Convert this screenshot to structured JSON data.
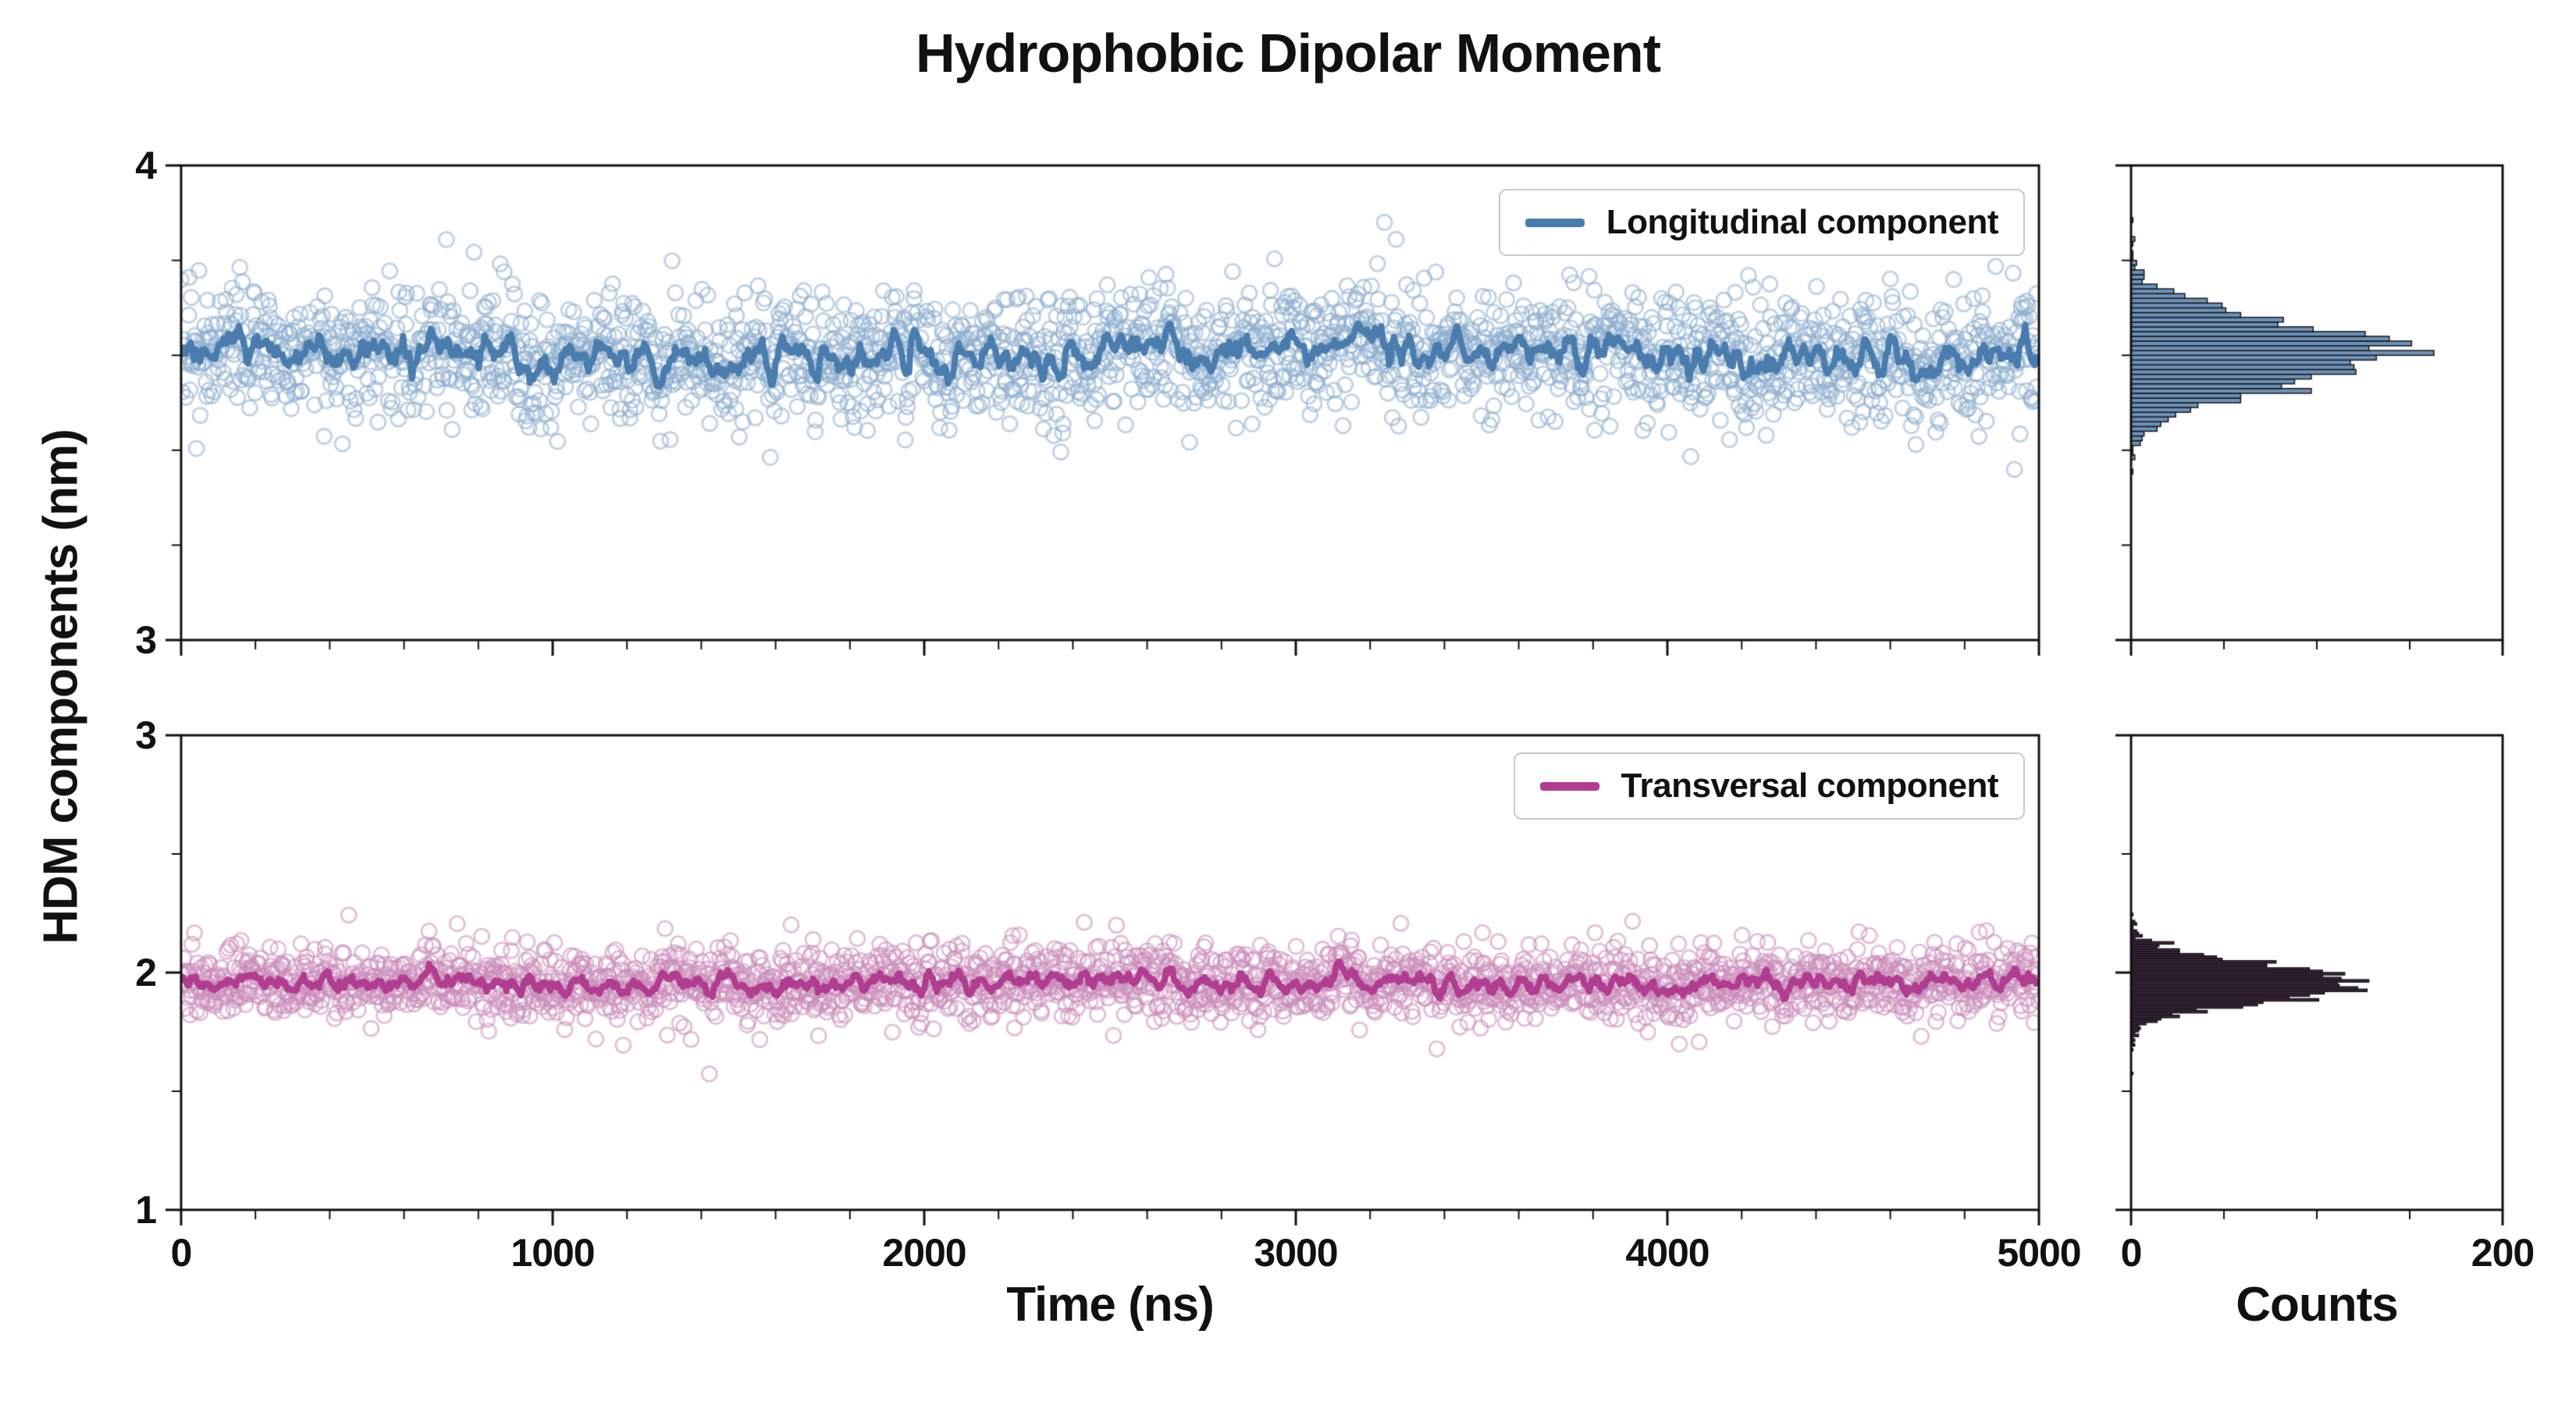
{
  "chart_data": {
    "type": "scatter",
    "title": "Hydrophobic Dipolar Moment",
    "xlabel": "Time (ns)",
    "ylabel": "HDM components (nm)",
    "hist_xlabel": "Counts",
    "x_range": [
      0,
      5000
    ],
    "xticks": [
      "0",
      "1000",
      "2000",
      "3000",
      "4000",
      "5000"
    ],
    "x_minor_step": 200,
    "hist_xlim": [
      0,
      200
    ],
    "hist_xticks": [
      "0",
      "200"
    ],
    "hist_x_minor": [
      50,
      100,
      150
    ],
    "legend_position": "upper right inside each panel",
    "grid": false,
    "panels": [
      {
        "legend": "Longitudinal component",
        "ylim": [
          3,
          4
        ],
        "yticks": [
          "3",
          "4"
        ],
        "y_minor_step": 0.2,
        "mean": 3.6,
        "std": 0.065,
        "n_points": 2400,
        "hist_bin_width": 0.01,
        "hist_peak_counts": 150,
        "scatter_color": "#8dadcd",
        "line_color": "#4a7dae",
        "hist_fill": "#6c92b6",
        "hist_edge": "#16161d",
        "seed": 7
      },
      {
        "legend": "Transversal component",
        "ylim": [
          1,
          3
        ],
        "yticks": [
          "1",
          "2",
          "3"
        ],
        "y_minor_step": 0.5,
        "mean": 1.96,
        "std": 0.075,
        "n_points": 2400,
        "hist_bin_width": 0.01,
        "hist_peak_counts": 128,
        "scatter_color": "#cb8cba",
        "line_color": "#b03d90",
        "hist_fill": "#46293f",
        "hist_edge": "#16161d",
        "seed": 21
      }
    ]
  }
}
